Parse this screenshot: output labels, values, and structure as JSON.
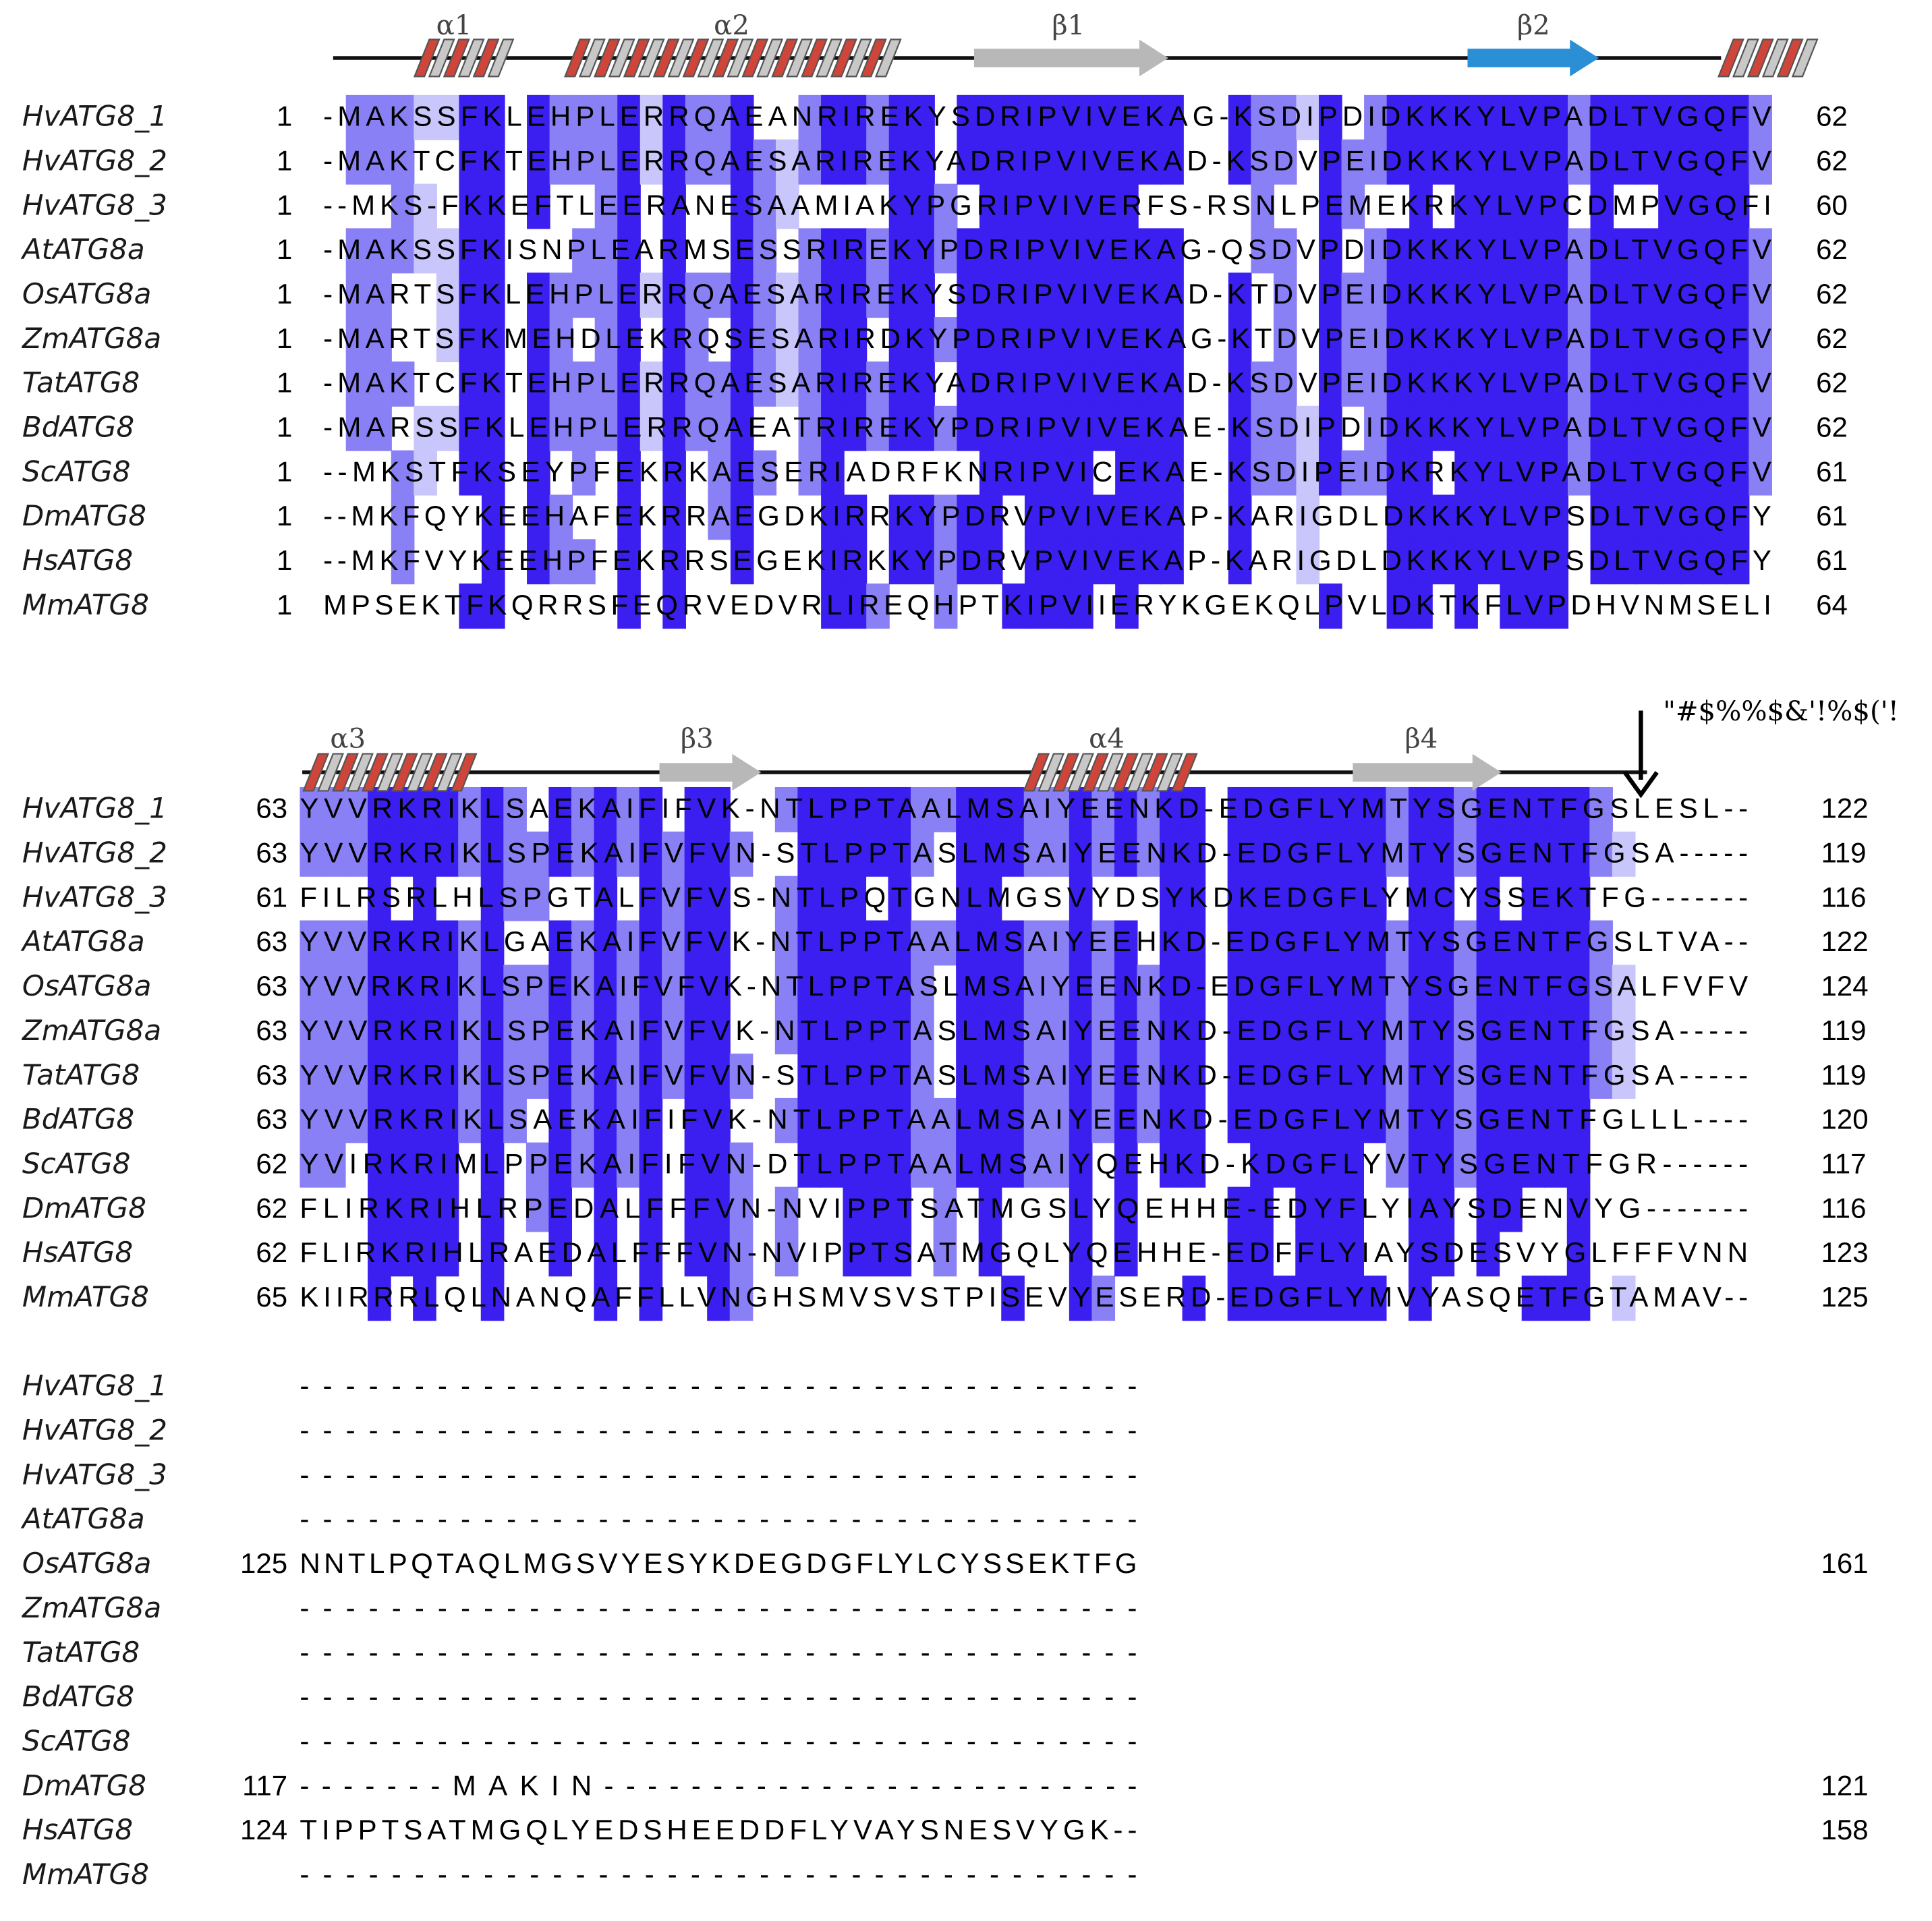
{
  "names": [
    "HvATG8_1",
    "HvATG8_2",
    "HvATG8_3",
    "AtATG8a",
    "OsATG8a",
    "ZmATG8a",
    "TatATG8",
    "BdATG8",
    "ScATG8",
    "DmATG8",
    "HsATG8",
    "MmATG8"
  ],
  "blocks": [
    {
      "starts": [
        "1",
        "1",
        "1",
        "1",
        "1",
        "1",
        "1",
        "1",
        "1",
        "1",
        "1",
        "1"
      ],
      "ends": [
        "62",
        "62",
        "60",
        "62",
        "62",
        "62",
        "62",
        "62",
        "61",
        "61",
        "61",
        "64"
      ],
      "seqs": [
        "-MAKSSFKLEHPLERRQAEANRIREKYSDRIPVIVEKAG-KSDIPDIDKKKYLVPADLTVGQFV",
        "-MAKTCFKTEHPLERRQAESARIREKYADRIPVIVEKAD-KSDVPEIDKKKYLVPADLTVGQFV",
        "--MKS-FKKEFTLEERANESAAMIAKYPGRIPVIVERFS-RSNLPEMEKRKYLVPCDMPVGQFI",
        "-MAKSSFKISNPLEARMSESSRIREKYPDRIPVIVEKAG-QSDVPDIDKKKYLVPADLTVGQFV",
        "-MARTSFKLEHPLERRQAESARIREKYSDRIPVIVEKAD-KTDVPEIDKKKYLVPADLTVGQFV",
        "-MARTSFKMEHDLEKRQSESARIRDKYPDRIPVIVEKAG-KTDVPEIDKKKYLVPADLTVGQFV",
        "-MAKTCFKTEHPLERRQAESARIREKYADRIPVIVEKAD-KSDVPEIDKKKYLVPADLTVGQFV",
        "-MARSSFKLEHPLERRQAEATRIREKYPDRIPVIVEKAE-KSDIPDIDKKKYLVPADLTVGQFV",
        "--MKSTFKSEYPFEKRKAESERIADRFKNRIPVICEKAE-KSDIPEIDKRKYLVPADLTVGQFV",
        "--MKFQYKEEHAFEKRRAEGDKIRRKYPDRVPVIVEKAP-KARIGDLDKKKYLVPSDLTVGQFY",
        "--MKFVYKEEHPFEKRRSEGEKIRKKYPDRVPVIVEKAP-KARIGDLDKKKYLVPSDLTVGQFY",
        "MPSEKTFKQRRSFEQRVEDVRLIREQHPTKIPVIIERYKGEKQLPVLDKTKFLVPDHVNMSELI"
      ]
    },
    {
      "starts": [
        "63",
        "63",
        "61",
        "63",
        "63",
        "63",
        "63",
        "63",
        "62",
        "62",
        "62",
        "65"
      ],
      "ends": [
        "122",
        "119",
        "116",
        "122",
        "124",
        "119",
        "119",
        "120",
        "117",
        "116",
        "123",
        "125"
      ],
      "seqs": [
        "YVVRKRIKLSAEKAIFIFVK-NTLPPTAALMSAIYEENKD-EDGFLYMTYSGENTFGSLESL--",
        "YVVRKRIKLSPEKAIFVFVN-STLPPTASLMSAIYEENKD-EDGFLYMTYSGENTFGSA-----",
        "FILRSRLHLSPGTALFVFVS-NTLPQTGNLMGSVYDSYKDKEDGFLYMCYSSEKTFG-------",
        "YVVRKRIKLGAEKAIFVFVK-NTLPPTAALMSAIYEEHKD-EDGFLYMTYSGENTFGSLTVA--",
        "YVVRKRIKLSPEKAIFVFVK-NTLPPTASLMSAIYEENKD-EDGFLYMTYSGENTFGSALFVFV",
        "YVVRKRIKLSPEKAIFVFVK-NTLPPTASLMSAIYEENKD-EDGFLYMTYSGENTFGSA-----",
        "YVVRKRIKLSPEKAIFVFVN-STLPPTASLMSAIYEENKD-EDGFLYMTYSGENTFGSA-----",
        "YVVRKRIKLSAEKAIFIFVK-NTLPPTAALMSAIYEENKD-EDGFLYMTYSGENTFGLLL----",
        "YVIRKRIMLPPEKAIFIFVN-DTLPPTAALMSAIYQEHKD-KDGFLYVTYSGENTFGR------",
        "FLIRKRIHLRPEDALFFFVN-NVIPPTSATMGSLYQEHHE-EDYFLYIAYSDENVYG-------",
        "FLIRKRIHLRAEDALFFFVN-NVIPPTSATMGQLYQEHHE-EDFFLYIAYSDESVYGLFFFVNN",
        "KIIRRRLQLNANQAFFLLVNGHSMVSVSTPISEVYESERD-EDGFLYMVYASQETFGTAMAV--"
      ]
    },
    {
      "starts": [
        "",
        "",
        "",
        "",
        "125",
        "",
        "",
        "",
        "",
        "117",
        "124",
        ""
      ],
      "ends": [
        "",
        "",
        "",
        "",
        "161",
        "",
        "",
        "",
        "",
        "121",
        "158",
        ""
      ],
      "seqs": [
        "-------------------------------------",
        "-------------------------------------",
        "-------------------------------------",
        "-------------------------------------",
        "NNTLPQTAQLMGSVYESYKDEGDGFLYLCYSSEKTFG",
        "-------------------------------------",
        "-------------------------------------",
        "-------------------------------------",
        "-------------------------------------",
        "-------MAKIN-------------------------",
        "TIPPTSATMGQLYEDSHEEDDFLYVAYSNESVYGK--",
        "-------------------------------------"
      ]
    }
  ],
  "secondary_structure": [
    {
      "block": 0,
      "label": "α1",
      "type": "helix"
    },
    {
      "block": 0,
      "label": "α2",
      "type": "helix"
    },
    {
      "block": 0,
      "label": "β1",
      "type": "strand",
      "color": "#b8b8b8"
    },
    {
      "block": 0,
      "label": "β2",
      "type": "strand",
      "color": "#2b8fd6"
    },
    {
      "block": 0,
      "label": "",
      "type": "helix"
    },
    {
      "block": 1,
      "label": "α3",
      "type": "helix"
    },
    {
      "block": 1,
      "label": "β3",
      "type": "strand",
      "color": "#b8b8b8"
    },
    {
      "block": 1,
      "label": "α4",
      "type": "helix"
    },
    {
      "block": 1,
      "label": "β4",
      "type": "strand",
      "color": "#b8b8b8"
    }
  ],
  "annotation": "\"#$%%$&'!%$('!",
  "colors": {
    "dark": "#3b1ff0",
    "medium": "#8a80f5",
    "light": "#c9c6fb",
    "helix_red": "#d0453a",
    "helix_grey": "#c8c8c8"
  }
}
